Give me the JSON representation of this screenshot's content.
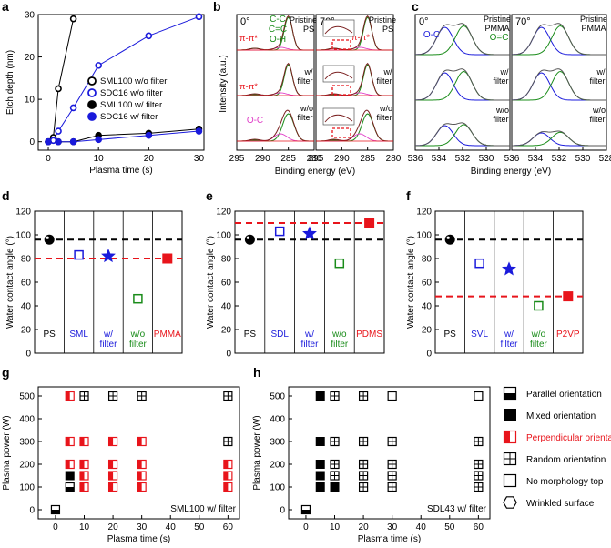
{
  "chart_data": [
    {
      "panel": "a",
      "type": "line",
      "xlabel": "Plasma time (s)",
      "ylabel": "Etch depth (nm)",
      "xlim": [
        -2,
        31
      ],
      "ylim": [
        -2,
        30
      ],
      "xticks": [
        "0",
        "10",
        "20",
        "30"
      ],
      "yticks": [
        "0",
        "10",
        "20",
        "30"
      ],
      "legend": [
        "SML100 w/o filter",
        "SDC16 w/o filter",
        "SML100 w/ filter",
        "SDC16 w/ filter"
      ],
      "series": [
        {
          "name": "SML100 w/o filter",
          "color": "#000000",
          "filled": false,
          "x": [
            0,
            1,
            2,
            5
          ],
          "y": [
            0,
            1,
            12.5,
            29
          ]
        },
        {
          "name": "SDC16 w/o filter",
          "color": "#1a1adb",
          "filled": false,
          "x": [
            0,
            1,
            2,
            5,
            10,
            20,
            30
          ],
          "y": [
            0,
            0.3,
            2.5,
            8,
            18,
            25,
            29.5
          ]
        },
        {
          "name": "SML100 w/ filter",
          "color": "#000000",
          "filled": true,
          "x": [
            0,
            2,
            5,
            10,
            20,
            30
          ],
          "y": [
            0,
            0,
            0,
            1.5,
            2,
            3
          ]
        },
        {
          "name": "SDC16 w/ filter",
          "color": "#1a1adb",
          "filled": true,
          "x": [
            0,
            2,
            5,
            10,
            20,
            30
          ],
          "y": [
            0,
            0,
            0,
            0.5,
            1.5,
            2.5
          ]
        }
      ]
    },
    {
      "panel": "b",
      "type": "spectrum",
      "xlabel": "Binding energy (eV)",
      "ylabel": "Intensity (a.u.)",
      "xticks": [
        "295",
        "290",
        "285",
        "280"
      ],
      "angles": [
        "0°",
        "70°"
      ],
      "rows": [
        "Pristine PS",
        "w/ filter",
        "w/o filter"
      ],
      "annotations": [
        "C-C",
        "C=C",
        "O-H",
        "π-π*",
        "π-π*",
        "O-C",
        "π-π*"
      ]
    },
    {
      "panel": "c",
      "type": "spectrum",
      "xlabel": "Binding energy (eV)",
      "ylabel": "",
      "xticks": [
        "536",
        "534",
        "532",
        "530",
        "528"
      ],
      "angles": [
        "0°",
        "70°"
      ],
      "rows": [
        "Pristine PMMA",
        "w/ filter",
        "w/o filter"
      ],
      "annotations": [
        "O-C",
        "O=C"
      ]
    },
    {
      "panel": "d",
      "type": "scatter",
      "ylabel": "Water contact angle (°)",
      "ylim": [
        0,
        120
      ],
      "yticks": [
        "0",
        "20",
        "40",
        "60",
        "80",
        "100",
        "120"
      ],
      "categories": [
        "PS",
        "SML",
        "w/\nfilter",
        "w/o\nfilter",
        "PMMA"
      ],
      "category_colors": [
        "#000000",
        "#1a1adb",
        "#1a1adb",
        "#1a8c1a",
        "#e8141b"
      ],
      "values": [
        96,
        83,
        82,
        46,
        80
      ],
      "ref_lines": [
        96,
        80
      ]
    },
    {
      "panel": "e",
      "type": "scatter",
      "ylabel": "Water contact angle (°)",
      "ylim": [
        0,
        120
      ],
      "yticks": [
        "0",
        "20",
        "40",
        "60",
        "80",
        "100",
        "120"
      ],
      "categories": [
        "PS",
        "SDL",
        "w/\nfilter",
        "w/o\nfilter",
        "PDMS"
      ],
      "category_colors": [
        "#000000",
        "#1a1adb",
        "#1a1adb",
        "#1a8c1a",
        "#e8141b"
      ],
      "values": [
        96,
        103,
        101,
        76,
        110
      ],
      "ref_lines": [
        96,
        110
      ]
    },
    {
      "panel": "f",
      "type": "scatter",
      "ylabel": "Water contact angle (°)",
      "ylim": [
        0,
        120
      ],
      "yticks": [
        "0",
        "20",
        "40",
        "60",
        "80",
        "100",
        "120"
      ],
      "categories": [
        "PS",
        "SVL",
        "w/\nfilter",
        "w/o\nfilter",
        "P2VP"
      ],
      "category_colors": [
        "#000000",
        "#1a1adb",
        "#1a1adb",
        "#1a8c1a",
        "#e8141b"
      ],
      "values": [
        96,
        76,
        71,
        40,
        48
      ],
      "ref_lines": [
        96,
        48
      ]
    },
    {
      "panel": "g",
      "type": "scatter",
      "title": "SML100 w/ filter",
      "xlabel": "Plasma time (s)",
      "ylabel": "Plasma power (W)",
      "xlim": [
        -6,
        64
      ],
      "ylim": [
        -40,
        540
      ],
      "xticks": [
        "0",
        "10",
        "20",
        "30",
        "40",
        "50",
        "60"
      ],
      "yticks": [
        "0",
        "100",
        "200",
        "300",
        "400",
        "500"
      ],
      "points": [
        {
          "x": 0,
          "y": 0,
          "m": "parallel"
        },
        {
          "x": 5,
          "y": 100,
          "m": "parallel"
        },
        {
          "x": 5,
          "y": 150,
          "m": "mixed"
        },
        {
          "x": 5,
          "y": 200,
          "m": "perpendicular"
        },
        {
          "x": 5,
          "y": 300,
          "m": "perpendicular"
        },
        {
          "x": 5,
          "y": 500,
          "m": "perpendicular"
        },
        {
          "x": 10,
          "y": 100,
          "m": "perpendicular"
        },
        {
          "x": 10,
          "y": 150,
          "m": "perpendicular"
        },
        {
          "x": 10,
          "y": 200,
          "m": "perpendicular"
        },
        {
          "x": 10,
          "y": 300,
          "m": "perpendicular"
        },
        {
          "x": 10,
          "y": 500,
          "m": "random"
        },
        {
          "x": 20,
          "y": 100,
          "m": "perpendicular"
        },
        {
          "x": 20,
          "y": 150,
          "m": "perpendicular"
        },
        {
          "x": 20,
          "y": 200,
          "m": "perpendicular"
        },
        {
          "x": 20,
          "y": 300,
          "m": "perpendicular"
        },
        {
          "x": 20,
          "y": 500,
          "m": "random"
        },
        {
          "x": 30,
          "y": 100,
          "m": "perpendicular"
        },
        {
          "x": 30,
          "y": 150,
          "m": "perpendicular"
        },
        {
          "x": 30,
          "y": 200,
          "m": "perpendicular"
        },
        {
          "x": 30,
          "y": 300,
          "m": "perpendicular"
        },
        {
          "x": 30,
          "y": 500,
          "m": "random"
        },
        {
          "x": 60,
          "y": 100,
          "m": "perpendicular"
        },
        {
          "x": 60,
          "y": 150,
          "m": "perpendicular"
        },
        {
          "x": 60,
          "y": 200,
          "m": "perpendicular"
        },
        {
          "x": 60,
          "y": 300,
          "m": "random"
        },
        {
          "x": 60,
          "y": 500,
          "m": "random"
        }
      ]
    },
    {
      "panel": "h",
      "type": "scatter",
      "title": "SDL43 w/ filter",
      "xlabel": "Plasma time (s)",
      "ylabel": "Plasma power (W)",
      "xlim": [
        -6,
        64
      ],
      "ylim": [
        -40,
        540
      ],
      "xticks": [
        "0",
        "10",
        "20",
        "30",
        "40",
        "50",
        "60"
      ],
      "yticks": [
        "0",
        "100",
        "200",
        "300",
        "400",
        "500"
      ],
      "points": [
        {
          "x": 0,
          "y": 0,
          "m": "parallel"
        },
        {
          "x": 5,
          "y": 100,
          "m": "mixed"
        },
        {
          "x": 5,
          "y": 150,
          "m": "mixed"
        },
        {
          "x": 5,
          "y": 200,
          "m": "mixed"
        },
        {
          "x": 5,
          "y": 300,
          "m": "mixed"
        },
        {
          "x": 5,
          "y": 500,
          "m": "mixed"
        },
        {
          "x": 10,
          "y": 100,
          "m": "mixed"
        },
        {
          "x": 10,
          "y": 150,
          "m": "random"
        },
        {
          "x": 10,
          "y": 200,
          "m": "random"
        },
        {
          "x": 10,
          "y": 300,
          "m": "random"
        },
        {
          "x": 10,
          "y": 500,
          "m": "random"
        },
        {
          "x": 20,
          "y": 100,
          "m": "random"
        },
        {
          "x": 20,
          "y": 150,
          "m": "random"
        },
        {
          "x": 20,
          "y": 200,
          "m": "random"
        },
        {
          "x": 20,
          "y": 300,
          "m": "random"
        },
        {
          "x": 20,
          "y": 500,
          "m": "random"
        },
        {
          "x": 30,
          "y": 100,
          "m": "random"
        },
        {
          "x": 30,
          "y": 150,
          "m": "random"
        },
        {
          "x": 30,
          "y": 200,
          "m": "random"
        },
        {
          "x": 30,
          "y": 300,
          "m": "random"
        },
        {
          "x": 30,
          "y": 500,
          "m": "none"
        },
        {
          "x": 60,
          "y": 100,
          "m": "random"
        },
        {
          "x": 60,
          "y": 150,
          "m": "random"
        },
        {
          "x": 60,
          "y": 200,
          "m": "random"
        },
        {
          "x": 60,
          "y": 300,
          "m": "random"
        },
        {
          "x": 60,
          "y": 500,
          "m": "none"
        }
      ]
    }
  ],
  "legend_gh": [
    {
      "marker": "parallel",
      "label": "Parallel orientation",
      "color": "#000000"
    },
    {
      "marker": "mixed",
      "label": "Mixed orientation",
      "color": "#000000"
    },
    {
      "marker": "perpendicular",
      "label": "Perpendicular orientation",
      "color": "#e8141b"
    },
    {
      "marker": "random",
      "label": "Random orientation",
      "color": "#000000"
    },
    {
      "marker": "none",
      "label": "No morphology top",
      "color": "#000000"
    },
    {
      "marker": "wrinkled",
      "label": "Wrinkled surface",
      "color": "#000000"
    }
  ]
}
